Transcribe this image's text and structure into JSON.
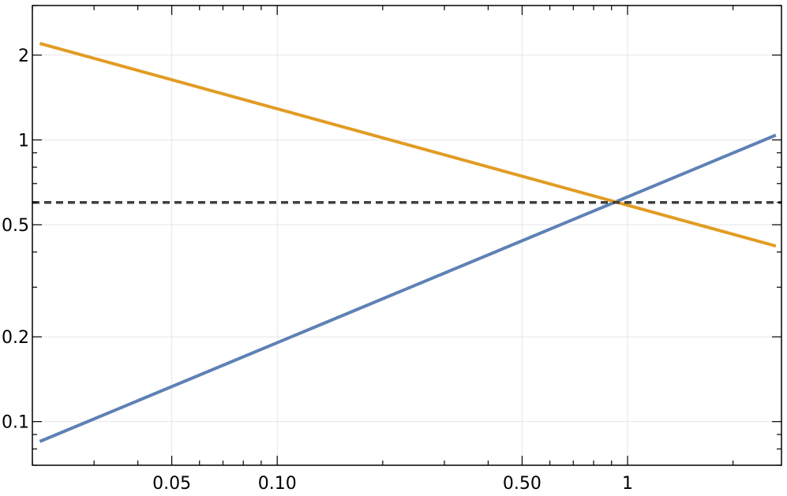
{
  "chart_data": {
    "type": "line",
    "x_scale": "log",
    "y_scale": "log",
    "xlim": [
      0.02,
      2.75
    ],
    "ylim": [
      0.07,
      3.0
    ],
    "xticks": [
      {
        "value": 0.05,
        "label": "0.05"
      },
      {
        "value": 0.1,
        "label": "0.10"
      },
      {
        "value": 0.5,
        "label": "0.50"
      },
      {
        "value": 1,
        "label": "1"
      }
    ],
    "yticks": [
      {
        "value": 0.1,
        "label": "0.1"
      },
      {
        "value": 0.2,
        "label": "0.2"
      },
      {
        "value": 0.5,
        "label": "0.5"
      },
      {
        "value": 1,
        "label": "1"
      },
      {
        "value": 2,
        "label": "2"
      }
    ],
    "grid": true,
    "series": [
      {
        "color": "#5e81b5",
        "style": "solid",
        "x": [
          0.021,
          2.65
        ],
        "y": [
          0.085,
          1.04
        ]
      },
      {
        "color": "#e19c24",
        "style": "solid",
        "x": [
          0.021,
          2.65
        ],
        "y": [
          2.2,
          0.42
        ]
      },
      {
        "color": "#404040",
        "style": "dashed",
        "x": [
          0.02,
          2.75
        ],
        "y": [
          0.6,
          0.6
        ]
      }
    ]
  }
}
